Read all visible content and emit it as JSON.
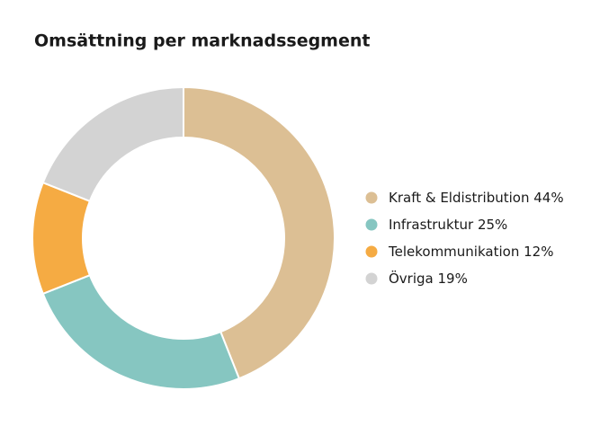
{
  "chart_data": {
    "type": "donut",
    "title": "Omsättning per marknadssegment",
    "categories": [
      "Kraft & Eldistribution",
      "Infrastruktur",
      "Telekommunikation",
      "Övriga"
    ],
    "values": [
      44,
      25,
      12,
      19
    ],
    "value_labels": [
      "44%",
      "25%",
      "12%",
      "19%"
    ],
    "colors": [
      "#dcbf94",
      "#86c6c1",
      "#f5ab43",
      "#d3d3d3"
    ],
    "legend": "right"
  }
}
